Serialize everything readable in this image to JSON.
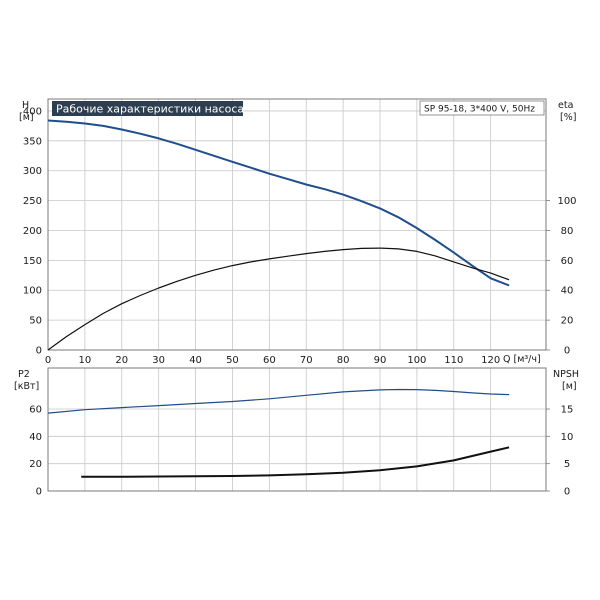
{
  "chart_data": [
    {
      "type": "line",
      "title": "Рабочие характеристики насоса",
      "subtitle": "SP 95-18, 3*400 V, 50Hz",
      "xlabel": "Q [м³/ч]",
      "ylabel_left": [
        "H",
        "[м]"
      ],
      "ylabel_right": [
        "eta",
        "[%]"
      ],
      "xlim": [
        0,
        135
      ],
      "ylim_left": [
        0,
        420
      ],
      "ylim_right": [
        0,
        168
      ],
      "x_ticks": [
        0,
        10,
        20,
        30,
        40,
        50,
        60,
        70,
        80,
        90,
        100,
        110,
        120
      ],
      "y_ticks_left": [
        0,
        50,
        100,
        150,
        200,
        250,
        300,
        350,
        400
      ],
      "y_ticks_right": [
        0,
        20,
        40,
        60,
        80,
        100
      ],
      "grid": true,
      "series": [
        {
          "axis": "left",
          "color": "#1f4e8c",
          "x": [
            0,
            5,
            10,
            15,
            20,
            25,
            30,
            35,
            40,
            45,
            50,
            55,
            60,
            65,
            70,
            75,
            80,
            85,
            90,
            95,
            100,
            105,
            110,
            115,
            120,
            125
          ],
          "values": [
            384,
            382,
            379,
            375,
            369,
            362,
            354,
            345,
            335,
            325,
            315,
            305,
            295,
            286,
            277,
            269,
            260,
            249,
            237,
            222,
            204,
            184,
            163,
            141,
            120,
            108
          ]
        },
        {
          "axis": "right",
          "color": "#111111",
          "x": [
            0,
            5,
            10,
            15,
            20,
            25,
            30,
            35,
            40,
            45,
            50,
            55,
            60,
            65,
            70,
            75,
            80,
            85,
            90,
            95,
            100,
            105,
            110,
            115,
            120,
            125
          ],
          "values": [
            0,
            9,
            17,
            24.5,
            31,
            36.5,
            41.5,
            46,
            50,
            53.5,
            56.5,
            59,
            61,
            62.8,
            64.5,
            66,
            67.2,
            68,
            68.2,
            67.7,
            66,
            63,
            59,
            55,
            51.5,
            47
          ]
        }
      ]
    },
    {
      "type": "line",
      "ylabel_left": [
        "P2",
        "[кВт]"
      ],
      "ylabel_right": [
        "NPSH",
        "[м]"
      ],
      "xlim": [
        0,
        135
      ],
      "ylim_left": [
        0,
        90
      ],
      "ylim_right": [
        0,
        22.5
      ],
      "y_ticks_left": [
        0,
        20,
        40,
        60
      ],
      "y_ticks_right": [
        0,
        5,
        10,
        15
      ],
      "grid": true,
      "series": [
        {
          "axis": "left",
          "color": "#1f4e8c",
          "x": [
            0,
            10,
            20,
            30,
            40,
            50,
            60,
            70,
            80,
            90,
            95,
            100,
            105,
            110,
            115,
            120,
            125
          ],
          "values": [
            57,
            59.5,
            61,
            62.5,
            64,
            65.5,
            67.5,
            70,
            72.5,
            74,
            74.3,
            74.2,
            73.6,
            72.8,
            71.8,
            71,
            70.5
          ]
        },
        {
          "axis": "right",
          "color": "#111111",
          "x": [
            9,
            20,
            30,
            40,
            50,
            60,
            70,
            80,
            90,
            100,
            110,
            115,
            120,
            125
          ],
          "values": [
            2.6,
            2.6,
            2.65,
            2.7,
            2.75,
            2.85,
            3.05,
            3.35,
            3.8,
            4.5,
            5.6,
            6.4,
            7.2,
            8
          ]
        }
      ]
    }
  ]
}
